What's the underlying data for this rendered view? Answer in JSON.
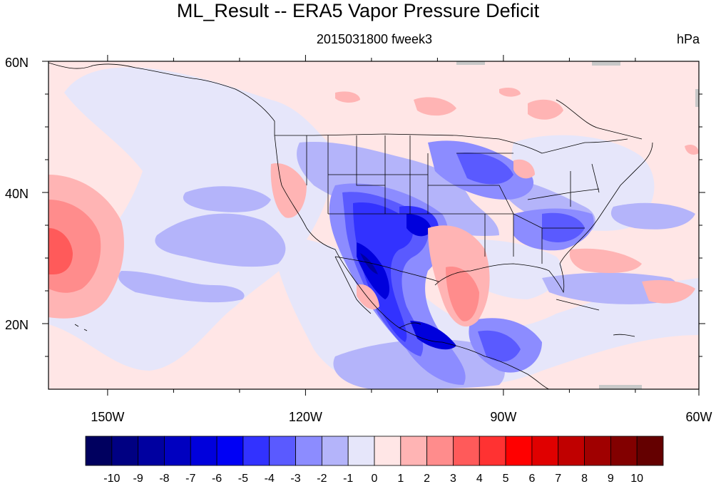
{
  "title": "ML_Result -- ERA5 Vapor Pressure Deficit",
  "subtitle_center": "2015031800 fweek3",
  "subtitle_right": "hPa",
  "map": {
    "lon_range": [
      -160,
      -60
    ],
    "lat_range": [
      10,
      60
    ],
    "lat_labels": [
      "60N",
      "40N",
      "20N"
    ],
    "lon_labels": [
      "150W",
      "120W",
      "90W",
      "60W"
    ]
  },
  "colorbar": {
    "labels": [
      "-10",
      "-9",
      "-8",
      "-7",
      "-6",
      "-5",
      "-4",
      "-3",
      "-2",
      "-1",
      "0",
      "1",
      "2",
      "3",
      "4",
      "5",
      "6",
      "7",
      "8",
      "9",
      "10"
    ],
    "colors": [
      "#00005f",
      "#000082",
      "#0000a0",
      "#0000c0",
      "#0000dc",
      "#0000f5",
      "#3232ff",
      "#5a5aff",
      "#8c8cff",
      "#b4b4fa",
      "#e6e6fa",
      "#ffe6e6",
      "#ffb4b4",
      "#ff8c8c",
      "#ff5a5a",
      "#ff3232",
      "#ff0000",
      "#e00000",
      "#c00000",
      "#a00000",
      "#820000",
      "#640000"
    ]
  }
}
